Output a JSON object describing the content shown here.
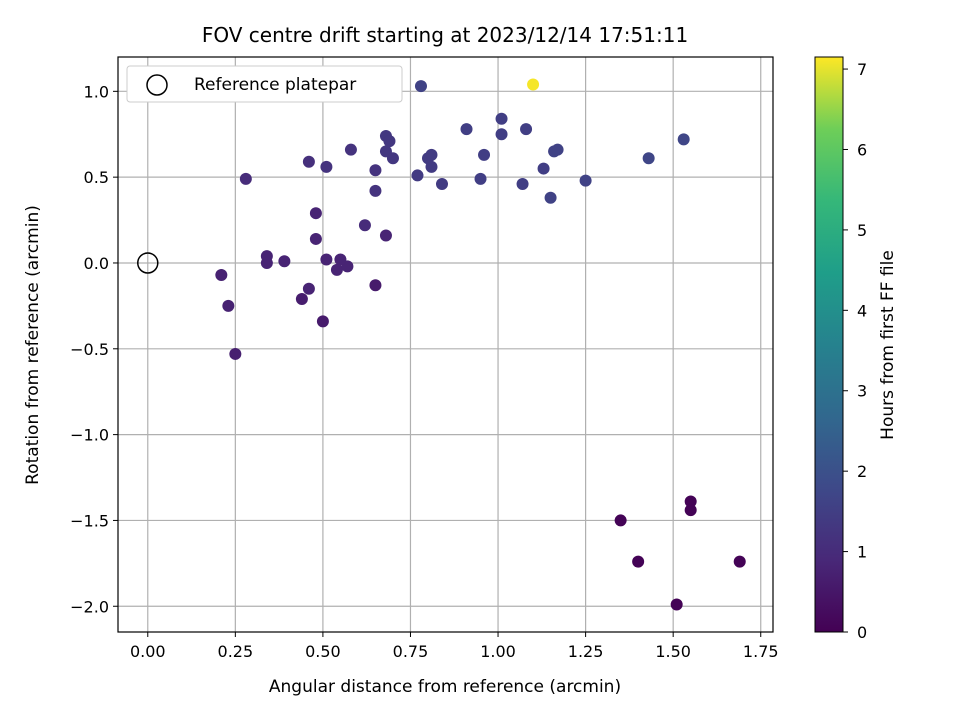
{
  "chart_data": {
    "type": "scatter",
    "title": "FOV centre drift starting at 2023/12/14 17:51:11",
    "xlabel": "Angular distance from reference (arcmin)",
    "ylabel": "Rotation from reference (arcmin)",
    "xlim": [
      -0.085,
      1.785
    ],
    "ylim": [
      -2.15,
      1.2
    ],
    "xticks": [
      0.0,
      0.25,
      0.5,
      0.75,
      1.0,
      1.25,
      1.5,
      1.75
    ],
    "xtick_labels": [
      "0.00",
      "0.25",
      "0.50",
      "0.75",
      "1.00",
      "1.25",
      "1.50",
      "1.75"
    ],
    "yticks": [
      1.0,
      0.5,
      0.0,
      -0.5,
      -1.0,
      -1.5,
      -2.0
    ],
    "ytick_labels": [
      "1.0",
      "0.5",
      "0.0",
      "−0.5",
      "−1.0",
      "−1.5",
      "−2.0"
    ],
    "grid": true,
    "legend": {
      "placement": "top-left",
      "entries": [
        "Reference platepar"
      ]
    },
    "reference_point": {
      "x": 0.0,
      "y": 0.0,
      "marker": "open-circle",
      "color": "#000000"
    },
    "colorbar": {
      "label": "Hours from first FF file",
      "colormap": "viridis",
      "range": [
        0,
        7.15
      ],
      "ticks": [
        0,
        1,
        2,
        3,
        4,
        5,
        6,
        7
      ],
      "tick_labels": [
        "0",
        "1",
        "2",
        "3",
        "4",
        "5",
        "6",
        "7"
      ]
    },
    "points": [
      {
        "x": 1.35,
        "y": -1.5,
        "c": 0.05
      },
      {
        "x": 1.55,
        "y": -1.39,
        "c": 0.05
      },
      {
        "x": 1.55,
        "y": -1.44,
        "c": 0.05
      },
      {
        "x": 1.4,
        "y": -1.74,
        "c": 0.05
      },
      {
        "x": 1.51,
        "y": -1.99,
        "c": 0.05
      },
      {
        "x": 1.69,
        "y": -1.74,
        "c": 0.05
      },
      {
        "x": 0.65,
        "y": -0.13,
        "c": 0.6
      },
      {
        "x": 0.5,
        "y": -0.34,
        "c": 0.6
      },
      {
        "x": 0.44,
        "y": -0.21,
        "c": 0.65
      },
      {
        "x": 0.25,
        "y": -0.53,
        "c": 0.7
      },
      {
        "x": 0.23,
        "y": -0.25,
        "c": 0.75
      },
      {
        "x": 0.21,
        "y": -0.07,
        "c": 0.75
      },
      {
        "x": 0.46,
        "y": -0.15,
        "c": 0.8
      },
      {
        "x": 0.39,
        "y": 0.01,
        "c": 0.8
      },
      {
        "x": 0.34,
        "y": 0.0,
        "c": 0.8
      },
      {
        "x": 0.34,
        "y": 0.04,
        "c": 0.8
      },
      {
        "x": 0.54,
        "y": -0.04,
        "c": 0.8
      },
      {
        "x": 0.57,
        "y": -0.02,
        "c": 0.8
      },
      {
        "x": 0.51,
        "y": 0.02,
        "c": 0.8
      },
      {
        "x": 0.55,
        "y": 0.02,
        "c": 0.8
      },
      {
        "x": 0.48,
        "y": 0.14,
        "c": 0.8
      },
      {
        "x": 0.68,
        "y": 0.16,
        "c": 0.8
      },
      {
        "x": 0.48,
        "y": 0.29,
        "c": 0.8
      },
      {
        "x": 0.62,
        "y": 0.22,
        "c": 1.0
      },
      {
        "x": 0.28,
        "y": 0.49,
        "c": 1.0
      },
      {
        "x": 0.46,
        "y": 0.59,
        "c": 1.1
      },
      {
        "x": 0.51,
        "y": 0.56,
        "c": 1.2
      },
      {
        "x": 0.58,
        "y": 0.66,
        "c": 1.2
      },
      {
        "x": 0.65,
        "y": 0.42,
        "c": 1.2
      },
      {
        "x": 0.65,
        "y": 0.54,
        "c": 1.2
      },
      {
        "x": 0.68,
        "y": 0.65,
        "c": 1.3
      },
      {
        "x": 0.68,
        "y": 0.74,
        "c": 1.3
      },
      {
        "x": 0.69,
        "y": 0.71,
        "c": 1.3
      },
      {
        "x": 0.7,
        "y": 0.61,
        "c": 1.3
      },
      {
        "x": 0.77,
        "y": 0.51,
        "c": 1.4
      },
      {
        "x": 0.8,
        "y": 0.61,
        "c": 1.4
      },
      {
        "x": 0.81,
        "y": 0.63,
        "c": 1.4
      },
      {
        "x": 0.81,
        "y": 0.56,
        "c": 1.4
      },
      {
        "x": 0.84,
        "y": 0.46,
        "c": 1.4
      },
      {
        "x": 0.78,
        "y": 1.03,
        "c": 1.6
      },
      {
        "x": 0.91,
        "y": 0.78,
        "c": 1.5
      },
      {
        "x": 0.95,
        "y": 0.49,
        "c": 1.5
      },
      {
        "x": 0.96,
        "y": 0.63,
        "c": 1.5
      },
      {
        "x": 1.01,
        "y": 0.84,
        "c": 1.5
      },
      {
        "x": 1.01,
        "y": 0.75,
        "c": 1.5
      },
      {
        "x": 1.07,
        "y": 0.46,
        "c": 1.5
      },
      {
        "x": 1.08,
        "y": 0.78,
        "c": 1.5
      },
      {
        "x": 1.13,
        "y": 0.55,
        "c": 1.5
      },
      {
        "x": 1.15,
        "y": 0.38,
        "c": 1.6
      },
      {
        "x": 1.16,
        "y": 0.65,
        "c": 1.6
      },
      {
        "x": 1.17,
        "y": 0.66,
        "c": 1.6
      },
      {
        "x": 1.25,
        "y": 0.48,
        "c": 1.6
      },
      {
        "x": 1.43,
        "y": 0.61,
        "c": 1.7
      },
      {
        "x": 1.53,
        "y": 0.72,
        "c": 1.7
      },
      {
        "x": 1.1,
        "y": 1.04,
        "c": 7.1
      }
    ]
  }
}
